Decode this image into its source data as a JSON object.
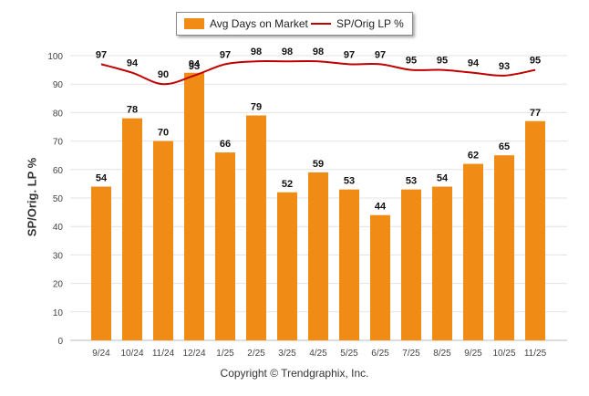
{
  "chart_data": {
    "type": "bar+line",
    "categories": [
      "9/24",
      "10/24",
      "11/24",
      "12/24",
      "1/25",
      "2/25",
      "3/25",
      "4/25",
      "5/25",
      "6/25",
      "7/25",
      "8/25",
      "9/25",
      "10/25",
      "11/25"
    ],
    "series": [
      {
        "name": "Avg Days on Market",
        "type": "bar",
        "color": "#f08b16",
        "values": [
          54,
          78,
          70,
          94,
          66,
          79,
          52,
          59,
          53,
          44,
          53,
          54,
          62,
          65,
          77
        ]
      },
      {
        "name": "SP/Orig LP %",
        "type": "line",
        "color": "#c00000",
        "values": [
          97,
          94,
          90,
          93,
          97,
          98,
          98,
          98,
          97,
          97,
          95,
          95,
          94,
          93,
          95
        ]
      }
    ],
    "ylabel": "SP/Orig. LP %",
    "ylim": [
      0,
      100
    ],
    "yticks": [
      0,
      10,
      20,
      30,
      40,
      50,
      60,
      70,
      80,
      90,
      100
    ],
    "grid": true,
    "legend_position": "top-center"
  },
  "legend": {
    "bar_label": "Avg Days on Market",
    "line_label": "SP/Orig LP %"
  },
  "footer": {
    "copyright": "Copyright © Trendgraphix, Inc."
  }
}
